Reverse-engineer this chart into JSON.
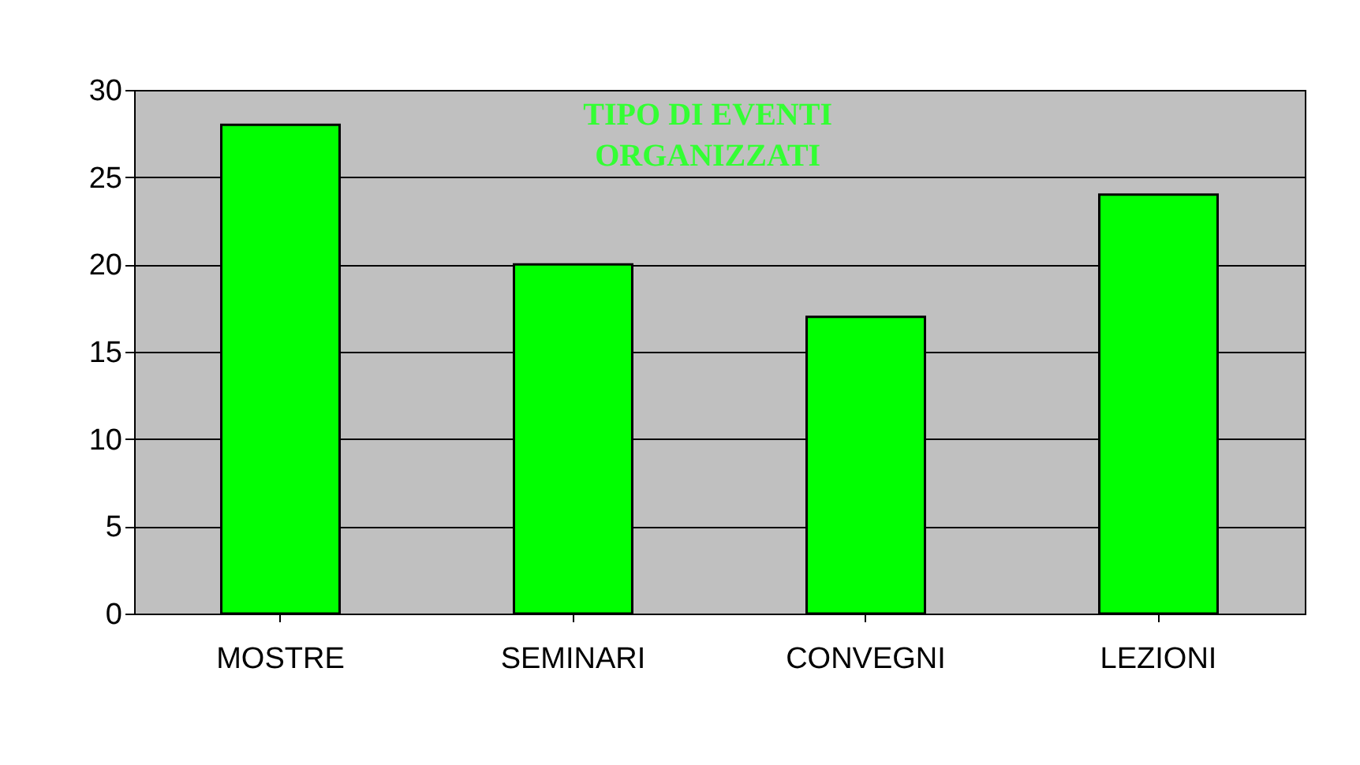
{
  "chart_data": {
    "type": "bar",
    "title": "TIPO DI EVENTI ORGANIZZATI",
    "categories": [
      "MOSTRE",
      "SEMINARI",
      "CONVEGNI",
      "LEZIONI"
    ],
    "values": [
      28,
      20,
      17,
      24
    ],
    "color": "#00ff00",
    "ylim": [
      0,
      30
    ],
    "yticks": [
      0,
      5,
      10,
      15,
      20,
      25,
      30
    ],
    "grid": "y"
  }
}
